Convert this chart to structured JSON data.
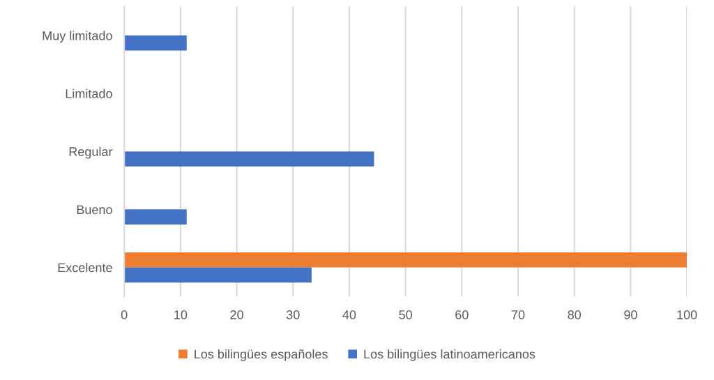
{
  "chart_data": {
    "type": "bar",
    "orientation": "horizontal",
    "categories": [
      "Muy limitado",
      "Limitado",
      "Regular",
      "Bueno",
      "Excelente"
    ],
    "series": [
      {
        "name": "Los bilingües españoles",
        "color": "#ed7d31",
        "values": [
          0,
          0,
          0,
          0,
          100
        ]
      },
      {
        "name": "Los bilingües latinoamericanos",
        "color": "#4472c4",
        "values": [
          11.1,
          0,
          44.4,
          11.1,
          33.3
        ]
      }
    ],
    "xlim": [
      0,
      100
    ],
    "xticks": [
      0,
      10,
      20,
      30,
      40,
      50,
      60,
      70,
      80,
      90,
      100
    ],
    "grid": "x",
    "legend": "bottom"
  }
}
